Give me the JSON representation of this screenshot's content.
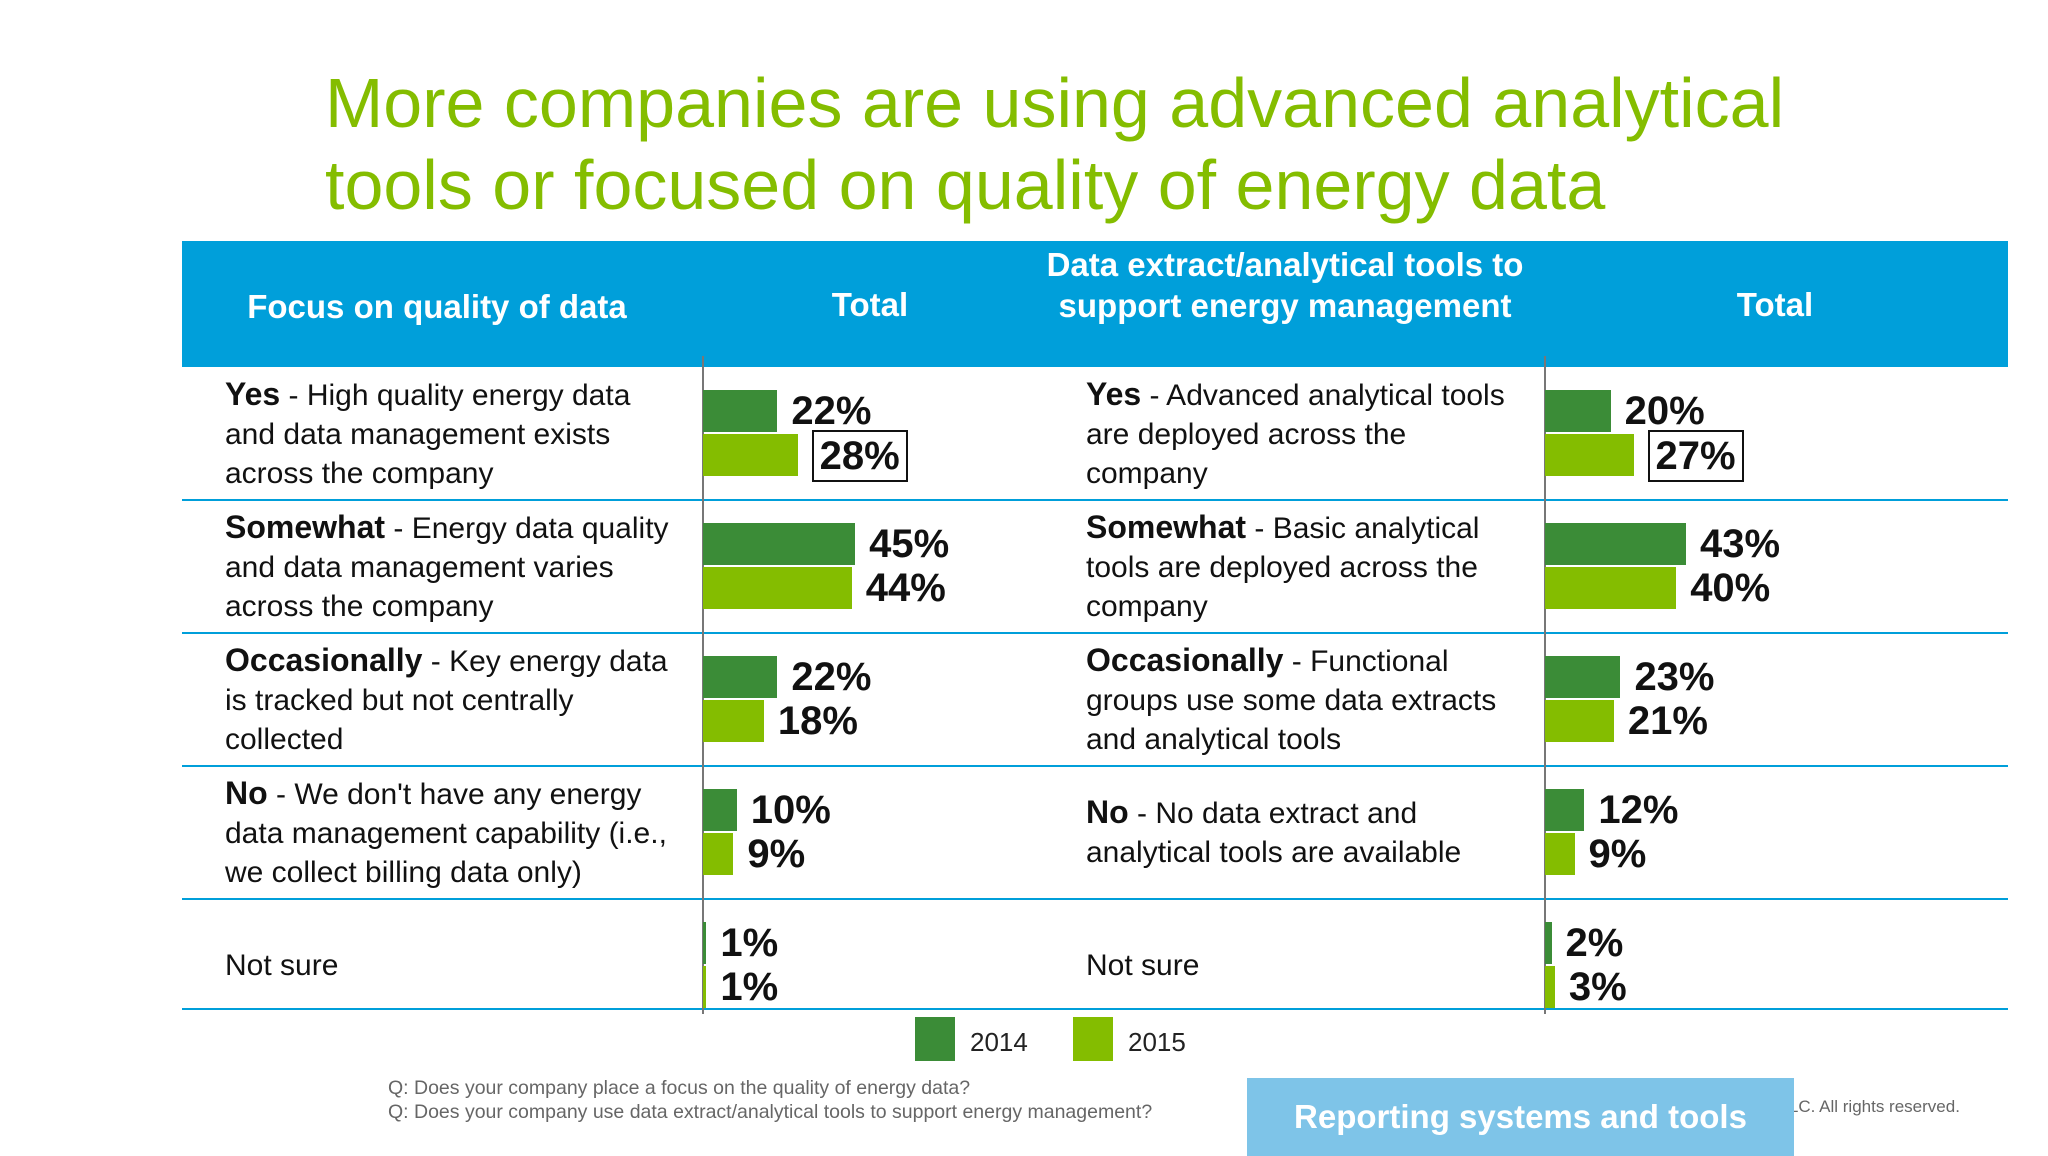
{
  "title_line1": "More companies are using advanced analytical",
  "title_line2": "tools or focused on quality of energy data",
  "colors": {
    "title": "#84bd00",
    "header": "#009fda",
    "series_2014": "#3b8c37",
    "series_2015": "#84bd00",
    "section_button": "#7ec4e8"
  },
  "chart_data": [
    {
      "type": "bar",
      "orientation": "horizontal",
      "header": {
        "category_title": "Focus on quality of data",
        "value_title": "Total"
      },
      "categories": [
        {
          "lead": "Yes",
          "description": "- High quality energy data and data management exists across the company"
        },
        {
          "lead": "Somewhat",
          "description": "- Energy data quality and data management varies across the company"
        },
        {
          "lead": "Occasionally",
          "description": "- Key energy data is tracked but not centrally collected"
        },
        {
          "lead": "No",
          "description": "- We don't have any energy data management capability (i.e., we collect billing data only)"
        },
        {
          "lead": "",
          "description": "Not sure"
        }
      ],
      "series": [
        {
          "name": "2014",
          "values": [
            22,
            45,
            22,
            10,
            1
          ],
          "labels": [
            "22%",
            "45%",
            "22%",
            "10%",
            "1%"
          ]
        },
        {
          "name": "2015",
          "values": [
            28,
            44,
            18,
            9,
            1
          ],
          "labels": [
            "28%",
            "44%",
            "18%",
            "9%",
            "1%"
          ]
        }
      ],
      "highlighted": {
        "series": "2015",
        "category_index": 0
      },
      "unit": "%"
    },
    {
      "type": "bar",
      "orientation": "horizontal",
      "header": {
        "category_title": "Data extract/analytical tools to support energy management",
        "value_title": "Total"
      },
      "categories": [
        {
          "lead": "Yes",
          "description": "- Advanced analytical tools are deployed across the company"
        },
        {
          "lead": "Somewhat",
          "description": "- Basic analytical tools are deployed across the company"
        },
        {
          "lead": "Occasionally",
          "description": "- Functional groups use some data extracts and analytical tools"
        },
        {
          "lead": "No",
          "description": "- No data extract and analytical tools are available"
        },
        {
          "lead": "",
          "description": "Not sure"
        }
      ],
      "series": [
        {
          "name": "2014",
          "values": [
            20,
            43,
            23,
            12,
            2
          ],
          "labels": [
            "20%",
            "43%",
            "23%",
            "12%",
            "2%"
          ]
        },
        {
          "name": "2015",
          "values": [
            27,
            40,
            21,
            9,
            3
          ],
          "labels": [
            "27%",
            "40%",
            "21%",
            "9%",
            "3%"
          ]
        }
      ],
      "highlighted": {
        "series": "2015",
        "category_index": 0
      },
      "unit": "%"
    }
  ],
  "legend": [
    {
      "label": "2014",
      "color": "#3b8c37"
    },
    {
      "label": "2015",
      "color": "#84bd00"
    }
  ],
  "questions": [
    "Q: Does your company place a focus on the quality of energy data?",
    "Q: Does your company use data extract/analytical tools to support energy management?"
  ],
  "section_button_label": "Reporting systems and tools",
  "copyright": "t LLC. All rights reserved."
}
